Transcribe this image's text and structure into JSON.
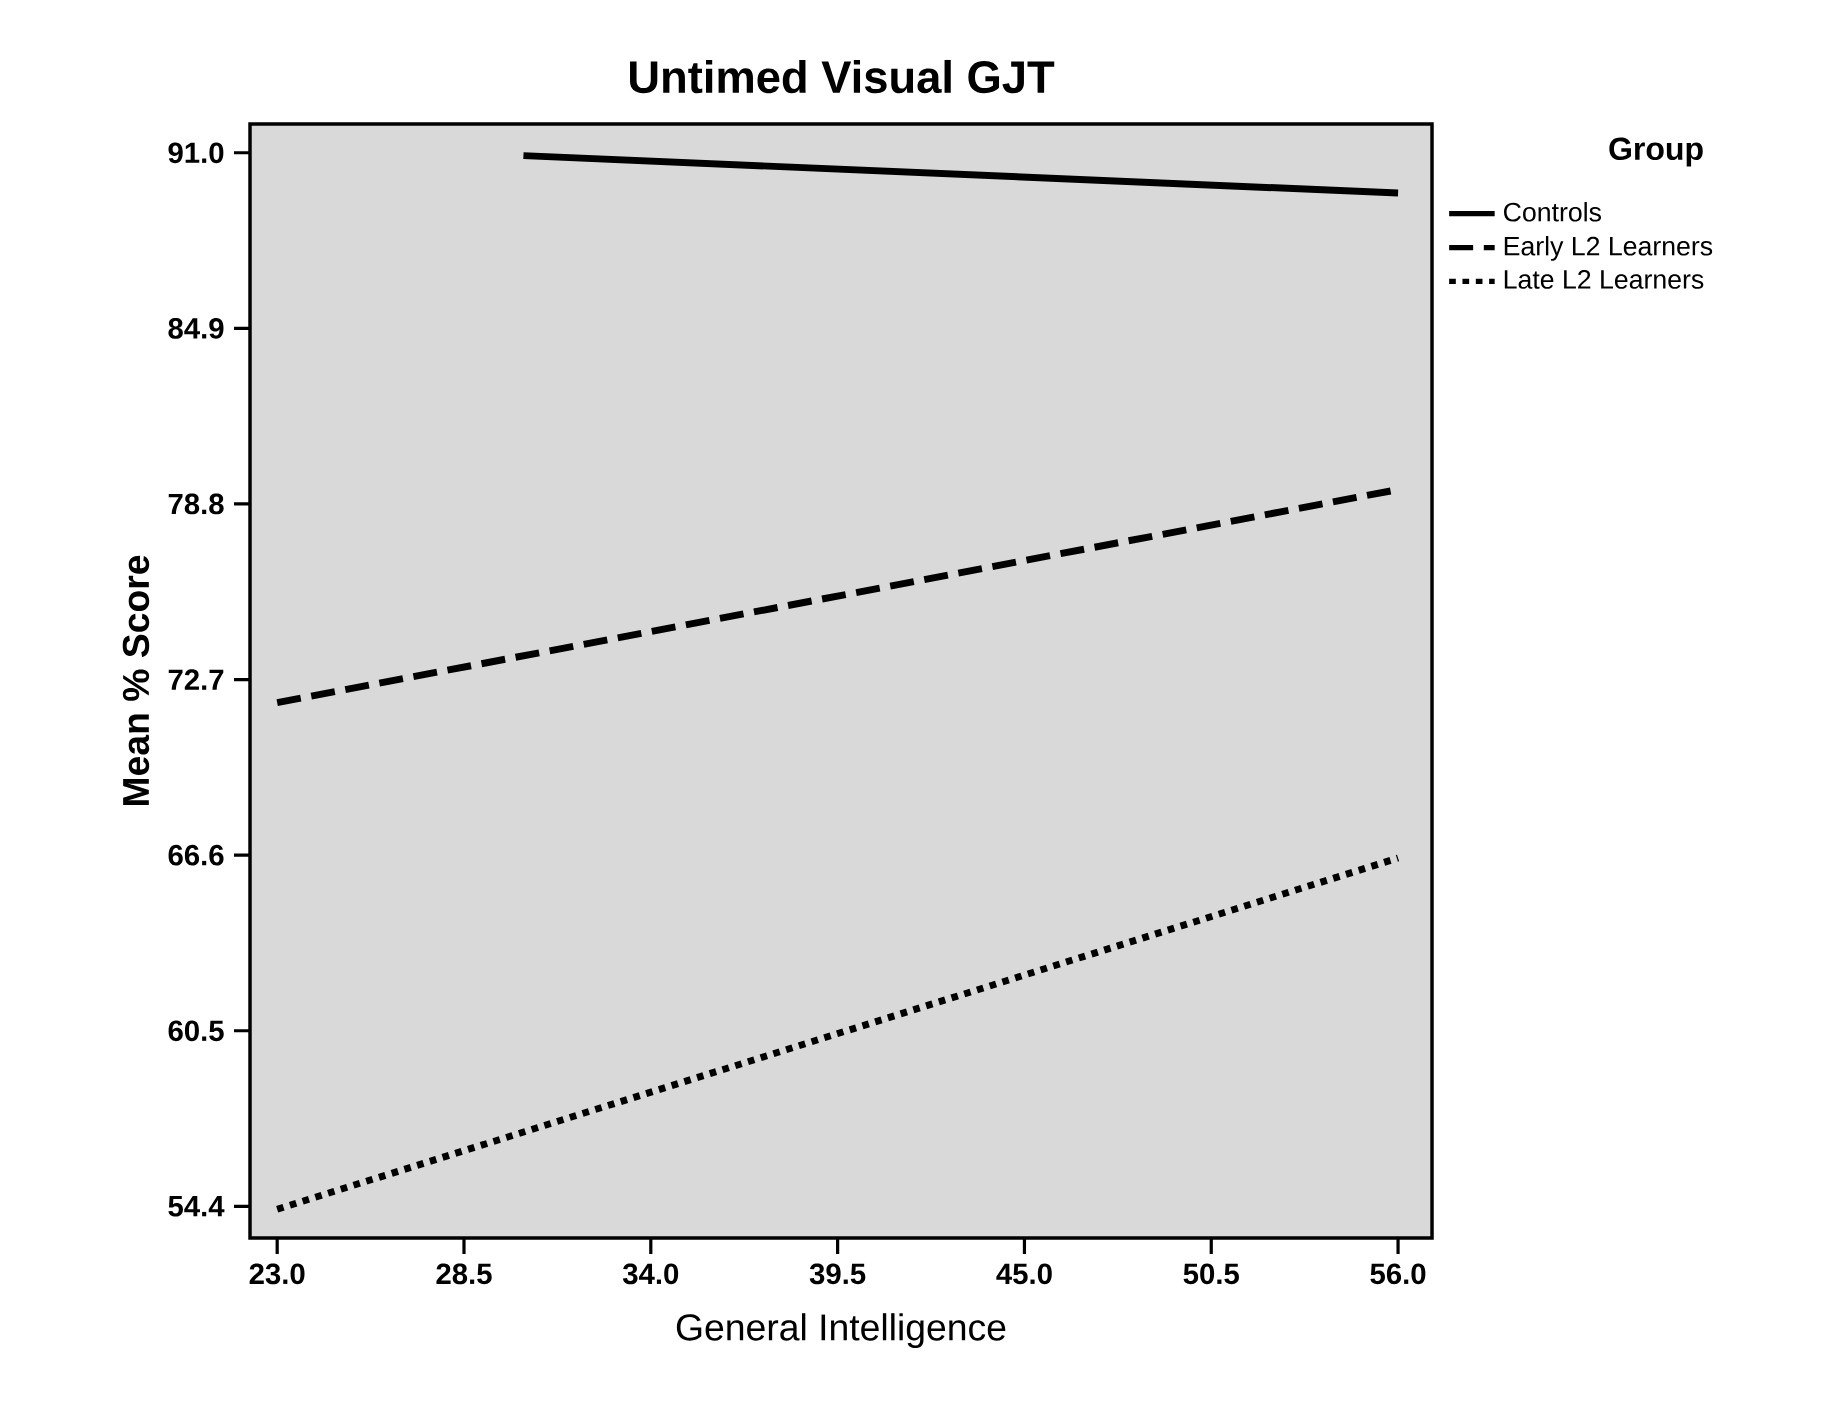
{
  "chart_data": {
    "type": "line",
    "title": "Untimed Visual GJT",
    "xlabel": "General Intelligence",
    "ylabel": "Mean % Score",
    "legend_title": "Group",
    "series": [
      {
        "name": "Controls",
        "color": "#000000",
        "line_style": "solid",
        "x": [
          30.25,
          56.0
        ],
        "values": [
          90.9,
          89.6
        ]
      },
      {
        "name": "Early L2 Learners",
        "color": "#000000",
        "line_style": "dashed",
        "x": [
          23.0,
          56.0
        ],
        "values": [
          71.9,
          79.3
        ]
      },
      {
        "name": "Late L2 Learners",
        "color": "#000000",
        "line_style": "dotted",
        "x": [
          23.0,
          56.0
        ],
        "values": [
          54.3,
          66.5
        ]
      }
    ],
    "xlim": [
      22.2,
      57.0
    ],
    "ylim": [
      53.3,
      92.0
    ],
    "xticks": [
      {
        "value": 23.0,
        "label": "23.0"
      },
      28.5,
      {
        "value": 34.0,
        "label": "34.0"
      },
      39.5,
      {
        "value": 45.0,
        "label": "45.0"
      },
      50.5,
      {
        "value": 56.0,
        "label": "56.0"
      }
    ],
    "yticks": [
      54.4,
      60.5,
      66.6,
      72.7,
      78.8,
      84.9,
      {
        "value": 91.0,
        "label": "91.0"
      }
    ],
    "grid": false,
    "legend": "top right",
    "marker": "none"
  }
}
